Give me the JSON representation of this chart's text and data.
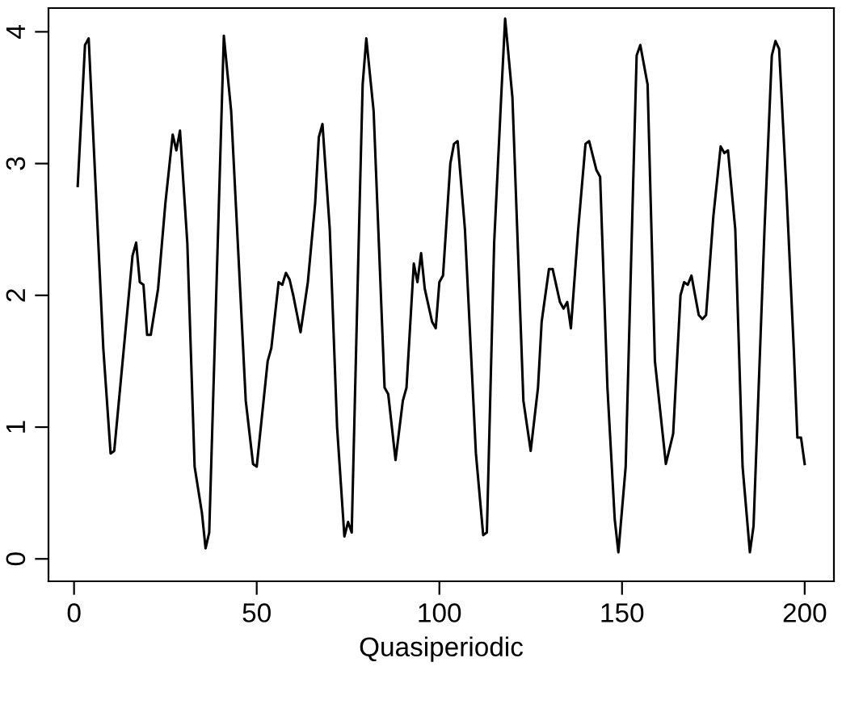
{
  "chart_data": {
    "type": "line",
    "xlabel": "Quasiperiodic",
    "x": [
      1,
      3,
      4,
      8,
      10,
      11,
      16,
      17,
      18,
      19,
      20,
      21,
      23,
      25,
      27,
      28,
      29,
      31,
      33,
      35,
      36,
      37,
      41,
      43,
      47,
      49,
      50,
      53,
      54,
      56,
      57,
      58,
      59,
      60,
      62,
      64,
      66,
      67,
      68,
      70,
      72,
      74,
      75,
      76,
      78,
      79,
      80,
      82,
      85,
      86,
      88,
      90,
      91,
      93,
      94,
      95,
      96,
      98,
      99,
      100,
      101,
      103,
      104,
      105,
      107,
      110,
      112,
      113,
      115,
      117,
      118,
      120,
      123,
      125,
      127,
      128,
      130,
      131,
      133,
      134,
      135,
      136,
      138,
      140,
      141,
      143,
      144,
      146,
      148,
      149,
      151,
      153,
      154,
      155,
      157,
      159,
      162,
      164,
      166,
      167,
      168,
      169,
      171,
      172,
      173,
      175,
      177,
      178,
      179,
      181,
      183,
      185,
      186,
      189,
      191,
      192,
      193,
      195,
      197,
      198,
      199,
      200
    ],
    "series": [
      {
        "color": "#000000",
        "values": [
          2.83,
          3.9,
          3.95,
          1.6,
          0.8,
          0.82,
          2.3,
          2.4,
          2.1,
          2.08,
          1.7,
          1.7,
          2.05,
          2.7,
          3.22,
          3.1,
          3.25,
          2.4,
          0.7,
          0.35,
          0.08,
          0.2,
          3.97,
          3.4,
          1.2,
          0.72,
          0.7,
          1.5,
          1.6,
          2.1,
          2.08,
          2.17,
          2.12,
          2.0,
          1.72,
          2.1,
          2.7,
          3.2,
          3.3,
          2.5,
          1.0,
          0.17,
          0.28,
          0.2,
          2.5,
          3.6,
          3.95,
          3.4,
          1.3,
          1.25,
          0.75,
          1.2,
          1.3,
          2.24,
          2.1,
          2.32,
          2.05,
          1.8,
          1.75,
          2.1,
          2.15,
          3.0,
          3.15,
          3.17,
          2.5,
          0.8,
          0.18,
          0.2,
          2.4,
          3.55,
          4.1,
          3.5,
          1.2,
          0.82,
          1.3,
          1.8,
          2.2,
          2.2,
          1.95,
          1.9,
          1.95,
          1.75,
          2.5,
          3.15,
          3.17,
          2.95,
          2.9,
          1.3,
          0.3,
          0.05,
          0.7,
          2.8,
          3.82,
          3.9,
          3.6,
          1.5,
          0.72,
          0.95,
          2.0,
          2.1,
          2.08,
          2.15,
          1.85,
          1.82,
          1.85,
          2.6,
          3.13,
          3.08,
          3.1,
          2.5,
          0.7,
          0.05,
          0.25,
          2.5,
          3.82,
          3.93,
          3.87,
          2.8,
          1.6,
          0.92,
          0.92,
          0.72
        ]
      }
    ],
    "xlim": [
      -7,
      208
    ],
    "ylim": [
      -0.17,
      4.18
    ],
    "xticks": [
      0,
      50,
      100,
      150,
      200
    ],
    "yticks": [
      0,
      1,
      2,
      3,
      4
    ],
    "grid": false,
    "legend": false,
    "marker": "none",
    "line_style": "solid"
  }
}
